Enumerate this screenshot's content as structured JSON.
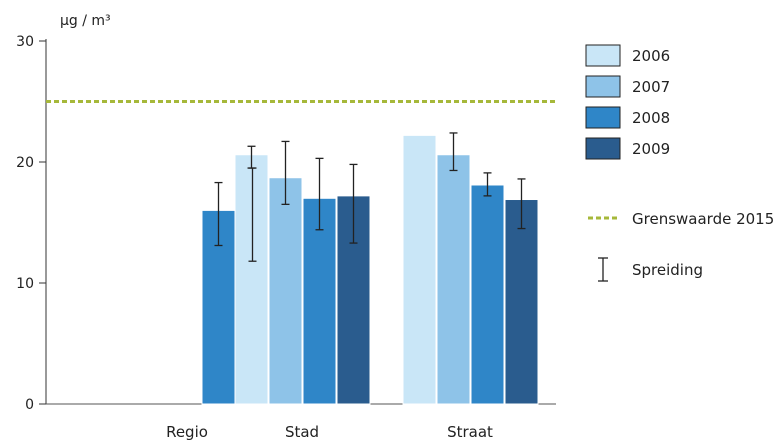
{
  "chart_data": {
    "type": "bar",
    "ylabel": "µg / m³",
    "ylim": [
      0,
      30
    ],
    "yticks": [
      0,
      10,
      20,
      30
    ],
    "categories": [
      "Regio",
      "Stad",
      "Straat"
    ],
    "series": [
      {
        "name": "2006",
        "color": "#c9e6f7",
        "values": [
          null,
          20.6,
          22.2
        ],
        "low": [
          null,
          19.5,
          null
        ],
        "high": [
          null,
          21.3,
          null
        ]
      },
      {
        "name": "2007",
        "color": "#8ec3e8",
        "values": [
          null,
          18.7,
          20.6
        ],
        "low": [
          null,
          16.5,
          19.3
        ],
        "high": [
          null,
          21.7,
          22.4
        ]
      },
      {
        "name": "2008",
        "color": "#2f86c8",
        "values": [
          16.0,
          17.0,
          18.1
        ],
        "low": [
          13.1,
          14.4,
          17.2
        ],
        "high": [
          18.3,
          20.3,
          19.1
        ]
      },
      {
        "name": "2009",
        "color": "#2a5c8e",
        "values": [
          15.4,
          17.2,
          16.9
        ],
        "low": [
          11.8,
          13.3,
          14.5
        ],
        "high": [
          19.5,
          19.8,
          18.6
        ]
      }
    ],
    "reference_line": {
      "name": "Grenswaarde 2015",
      "value": 25,
      "color": "#a6b83a"
    },
    "error_bar_label": "Spreiding",
    "grid": false,
    "legend_position": "right"
  }
}
